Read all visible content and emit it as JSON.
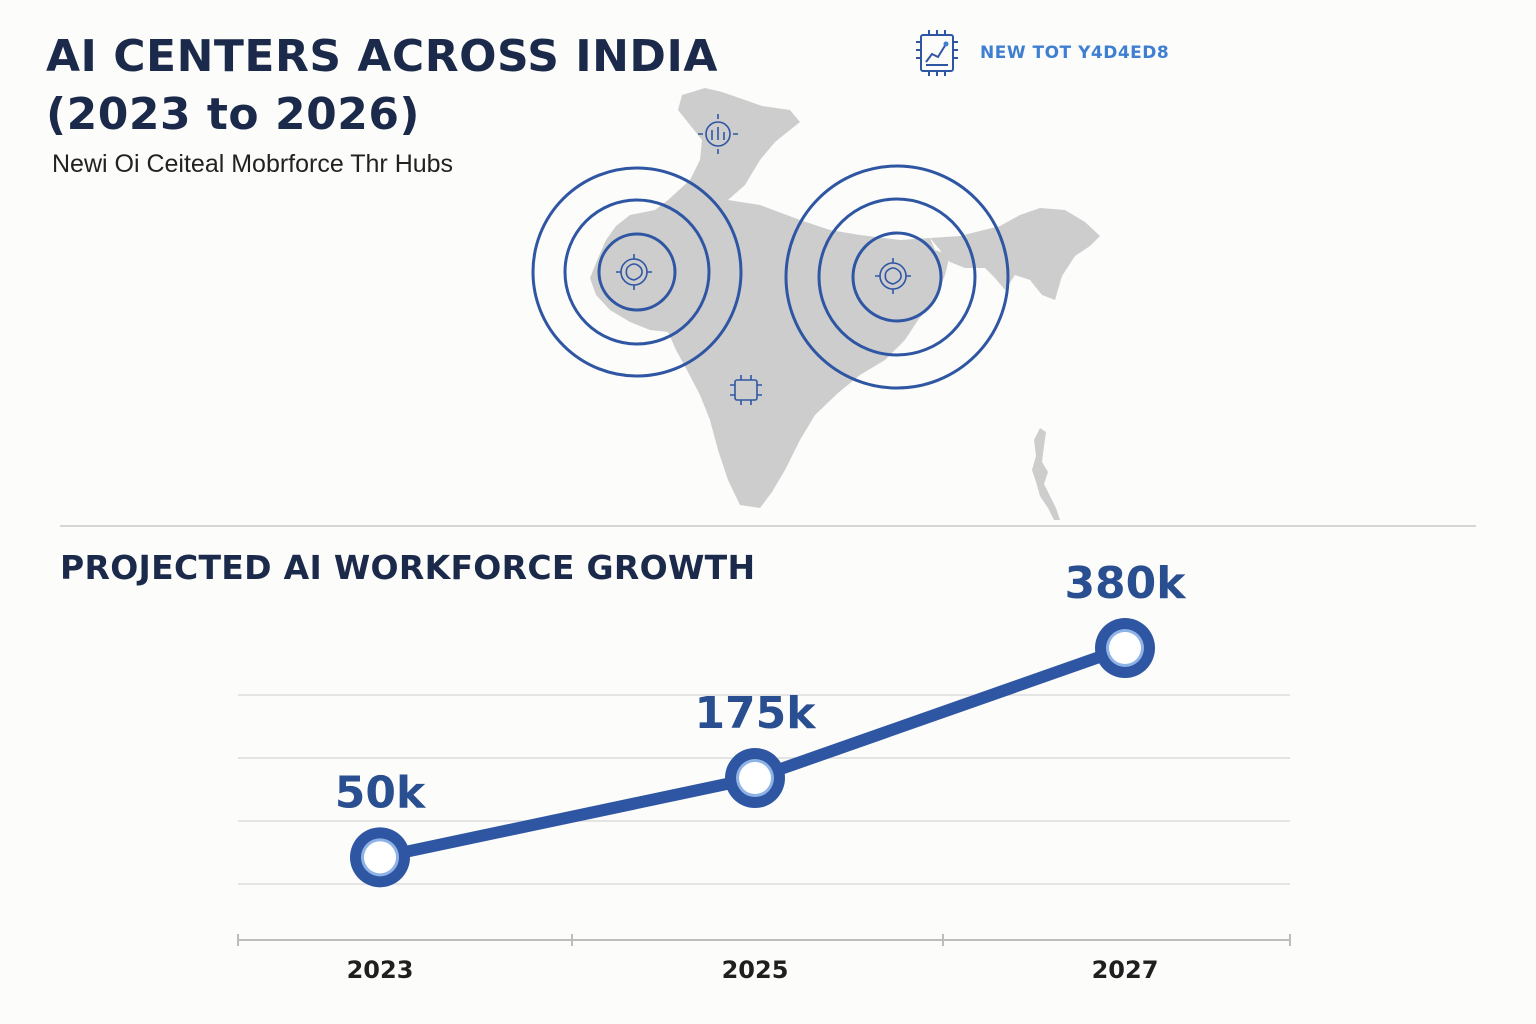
{
  "header": {
    "title_line1": "AI CENTERS ACROSS INDIA",
    "title_line2": "(2023 to 2026)",
    "subtitle": "Newi Oi Ceiteal Mobrforce Thr Hubs",
    "brand_text": "NEW TOT Y4D4ED8"
  },
  "map": {
    "hub_icons": [
      "circuit-hub-icon",
      "brain-hub-icon",
      "brain-hub-icon",
      "chip-icon"
    ],
    "ring_color": "#2f56a3",
    "land_color": "#cdcdcd"
  },
  "colors": {
    "accent": "#2f56a3",
    "title": "#1b2a4a",
    "brand": "#3f7fd1"
  },
  "chart_data": {
    "type": "line",
    "title": "PROJECTED AI WORKFORCE GROWTH",
    "categories": [
      "2023",
      "2025",
      "2027"
    ],
    "values": [
      50,
      175,
      380
    ],
    "value_labels": [
      "50k",
      "175k",
      "380k"
    ],
    "xlabel": "",
    "ylabel": "",
    "ylim": [
      0,
      420
    ],
    "grid": true
  }
}
